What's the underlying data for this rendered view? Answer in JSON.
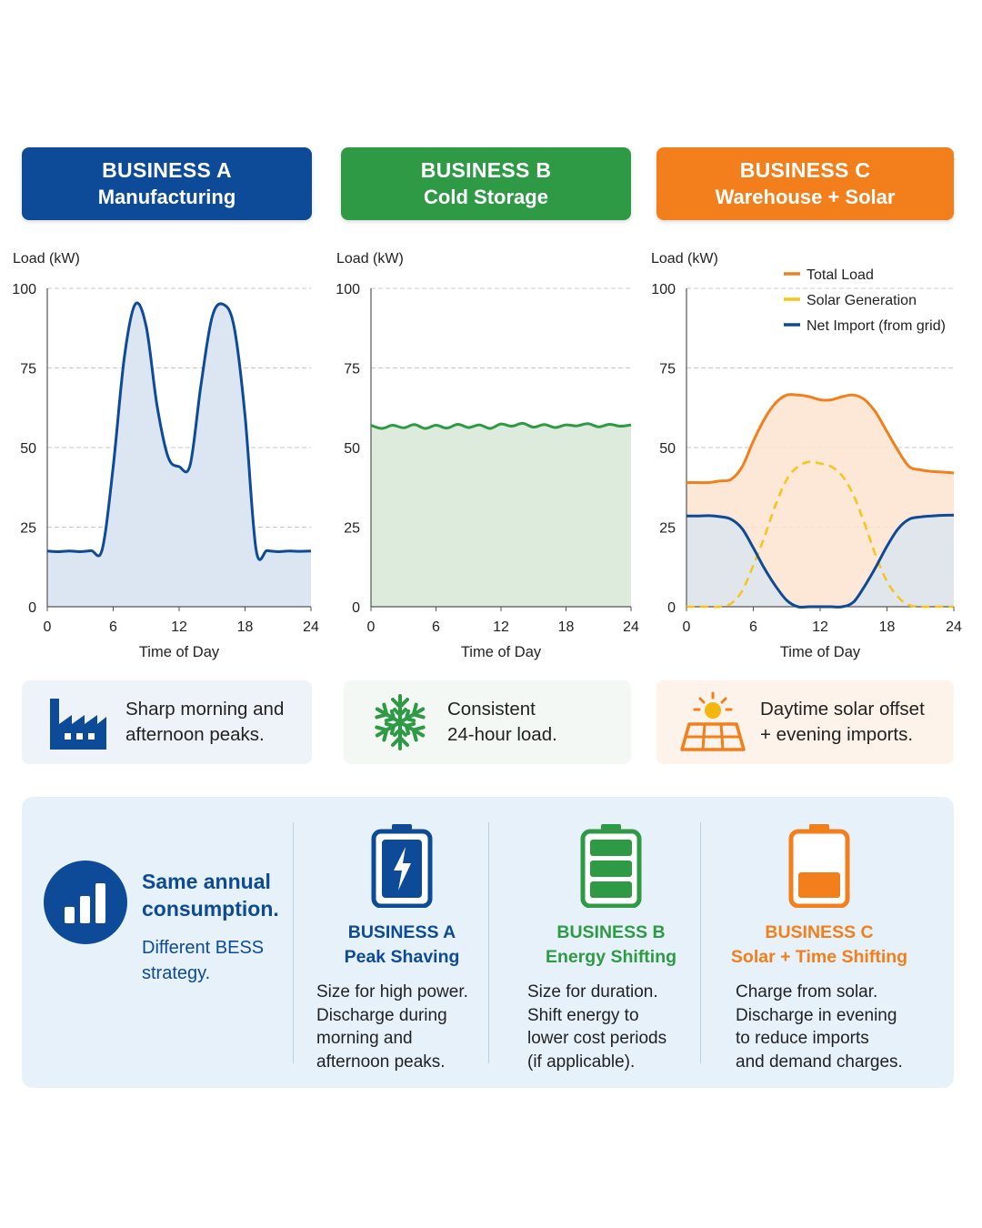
{
  "colors": {
    "business_a": "#0d4a97",
    "business_b": "#2f9a45",
    "business_c": "#f27f1b",
    "solar": "#f5c518"
  },
  "headers": [
    {
      "title": "BUSINESS A",
      "subtitle": "Manufacturing"
    },
    {
      "title": "BUSINESS B",
      "subtitle": "Cold Storage"
    },
    {
      "title": "BUSINESS C",
      "subtitle": "Warehouse + Solar"
    }
  ],
  "chart_data": [
    {
      "type": "area",
      "title": "",
      "xlabel": "Time of Day",
      "ylabel": "Load (kW)",
      "xlim": [
        0,
        24
      ],
      "ylim": [
        0,
        100
      ],
      "xticks": [
        0,
        6,
        12,
        18,
        24
      ],
      "yticks": [
        0,
        25,
        50,
        75,
        100
      ],
      "grid": true,
      "series": [
        {
          "x": [
            0,
            1,
            2,
            3,
            4,
            5,
            6,
            7,
            8,
            9,
            10,
            11,
            12,
            13,
            14,
            15,
            16,
            17,
            18,
            19,
            20,
            21,
            22,
            23,
            24
          ],
          "values": [
            17.5,
            17.3,
            17.5,
            17.3,
            17.6,
            18,
            44,
            78,
            95,
            88,
            63,
            47,
            44,
            44.5,
            70,
            91,
            95,
            88,
            60,
            18,
            17.6,
            17.3,
            17.5,
            17.4,
            17.5
          ]
        }
      ]
    },
    {
      "type": "area",
      "title": "",
      "xlabel": "Time of Day",
      "ylabel": "Load (kW)",
      "xlim": [
        0,
        24
      ],
      "ylim": [
        0,
        100
      ],
      "xticks": [
        0,
        6,
        12,
        18,
        24
      ],
      "yticks": [
        0,
        25,
        50,
        75,
        100
      ],
      "grid": true,
      "series": [
        {
          "x": [
            0,
            1,
            2,
            3,
            4,
            5,
            6,
            7,
            8,
            9,
            10,
            11,
            12,
            13,
            14,
            15,
            16,
            17,
            18,
            19,
            20,
            21,
            22,
            23,
            24
          ],
          "values": [
            57,
            56,
            57,
            56.2,
            57.2,
            56,
            57,
            56.1,
            57.3,
            56.3,
            57.1,
            56,
            57.4,
            56.7,
            57.6,
            56.4,
            57.2,
            56.3,
            57.1,
            56.8,
            57.5,
            56.5,
            57.3,
            56.7,
            57.1
          ]
        }
      ]
    },
    {
      "type": "area",
      "title": "",
      "xlabel": "Time of Day",
      "ylabel": "Load (kW)",
      "xlim": [
        0,
        24
      ],
      "ylim": [
        0,
        100
      ],
      "xticks": [
        0,
        6,
        12,
        18,
        24
      ],
      "yticks": [
        0,
        25,
        50,
        75,
        100
      ],
      "grid": true,
      "legend": "top-right",
      "series": [
        {
          "name": "Total Load",
          "x": [
            0,
            1,
            2,
            3,
            4,
            5,
            6,
            7,
            8,
            9,
            10,
            11,
            12,
            13,
            14,
            15,
            16,
            17,
            18,
            19,
            20,
            21,
            22,
            23,
            24
          ],
          "values": [
            39,
            39,
            39,
            39.5,
            40,
            44,
            52,
            59,
            64,
            66.5,
            66.5,
            66,
            65,
            65,
            66,
            66.5,
            65,
            61,
            55,
            49,
            44,
            43,
            42.5,
            42.3,
            42
          ]
        },
        {
          "name": "Solar Generation",
          "x": [
            0,
            1,
            2,
            3,
            4,
            5,
            6,
            7,
            8,
            9,
            10,
            11,
            12,
            13,
            14,
            15,
            16,
            17,
            18,
            19,
            20,
            21,
            22,
            23,
            24
          ],
          "values": [
            0,
            0,
            0,
            0,
            1,
            5,
            13,
            22,
            32,
            40,
            44,
            45.5,
            45,
            44,
            41,
            35,
            26,
            16,
            8,
            3,
            0.5,
            0,
            0,
            0,
            0
          ]
        },
        {
          "name": "Net Import (from grid)",
          "x": [
            0,
            1,
            2,
            3,
            4,
            5,
            6,
            7,
            8,
            9,
            10,
            11,
            12,
            13,
            14,
            15,
            16,
            17,
            18,
            19,
            20,
            21,
            22,
            23,
            24
          ],
          "values": [
            28.5,
            28.5,
            28.6,
            28.3,
            27.5,
            24.5,
            18.5,
            12,
            6.5,
            2,
            0,
            0,
            0,
            0,
            0,
            1.5,
            6.5,
            12.5,
            19,
            24.5,
            27.5,
            28.2,
            28.5,
            28.7,
            28.8
          ]
        }
      ]
    }
  ],
  "notes": [
    {
      "icon": "factory-icon",
      "line1": "Sharp morning and",
      "line2": "afternoon peaks."
    },
    {
      "icon": "snowflake-icon",
      "line1": "Consistent",
      "line2": "24-hour load."
    },
    {
      "icon": "solar-panel-icon",
      "line1": "Daytime solar offset",
      "line2": "+ evening imports."
    }
  ],
  "summary": {
    "icon": "bar-chart-icon",
    "heading_line1": "Same annual",
    "heading_line2": "consumption.",
    "sub_line1": "Different BESS",
    "sub_line2": "strategy."
  },
  "strategies": [
    {
      "icon": "battery-charging-icon",
      "title": "BUSINESS A",
      "subtitle": "Peak Shaving",
      "desc": [
        "Size for high power.",
        "Discharge during",
        "morning and",
        "afternoon peaks."
      ]
    },
    {
      "icon": "battery-full-icon",
      "title": "BUSINESS B",
      "subtitle": "Energy Shifting",
      "desc": [
        "Size for duration.",
        "Shift energy to",
        "lower cost periods",
        "(if applicable)."
      ]
    },
    {
      "icon": "battery-low-icon",
      "title": "BUSINESS C",
      "subtitle": "Solar + Time Shifting",
      "desc": [
        "Charge from solar.",
        "Discharge in evening",
        "to reduce imports",
        "and demand charges."
      ]
    }
  ]
}
